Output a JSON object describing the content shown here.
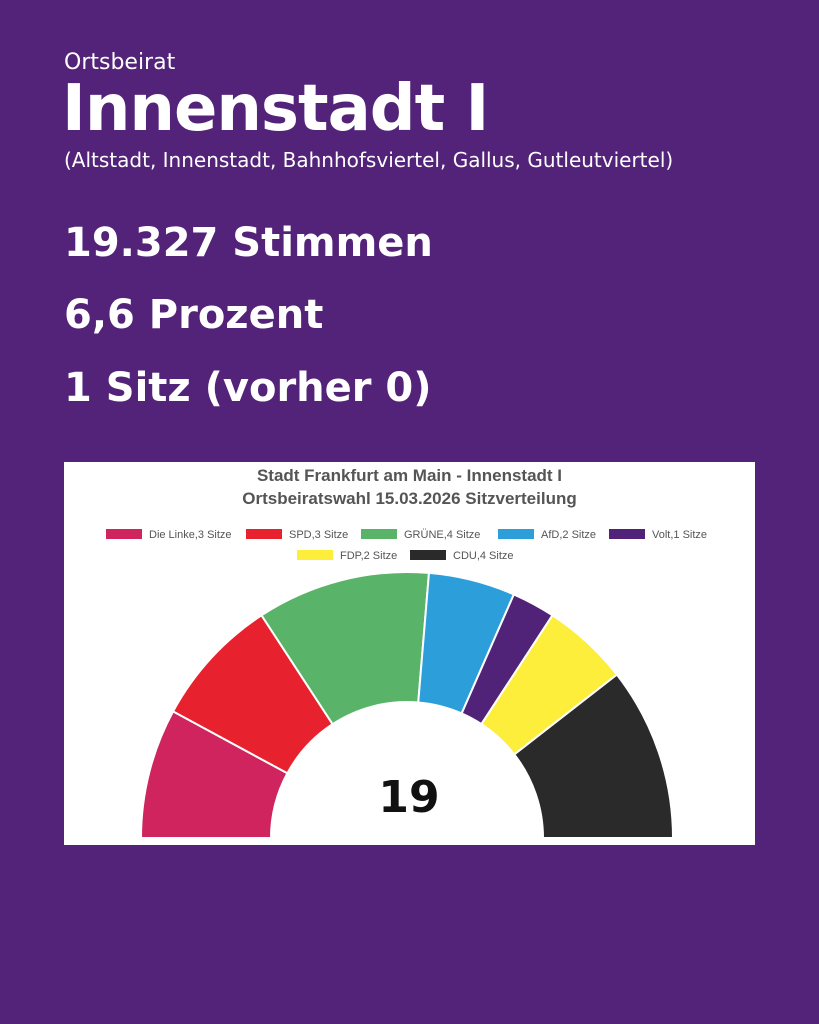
{
  "header": {
    "label": "Ortsbeirat",
    "district": "Innenstadt I",
    "areas": "(Altstadt, Innenstadt, Bahnhofsviertel, Gallus, Gutleutviertel)"
  },
  "stats": {
    "votes": "19.327 Stimmen",
    "percent": "6,6 Prozent",
    "seats": "1 Sitz (vorher 0)"
  },
  "chart_data": {
    "type": "pie",
    "variant": "half-donut",
    "title": [
      "Stadt Frankfurt am Main - Innenstadt I",
      "Ortsbeiratswahl 15.03.2026 Sitzverteilung"
    ],
    "legend_placement": "top",
    "total_label": "19",
    "series": [
      {
        "name": "Die Linke",
        "legend": "Die Linke,3 Sitze",
        "value": 3,
        "color": "#D0245E"
      },
      {
        "name": "SPD",
        "legend": "SPD,3 Sitze",
        "value": 3,
        "color": "#E8212E"
      },
      {
        "name": "GRÜNE",
        "legend": "GRÜNE,4 Sitze",
        "value": 4,
        "color": "#59B368"
      },
      {
        "name": "AfD",
        "legend": "AfD,2 Sitze",
        "value": 2,
        "color": "#2C9FDB"
      },
      {
        "name": "Volt",
        "legend": "Volt,1 Sitze",
        "value": 1,
        "color": "#502379"
      },
      {
        "name": "FDP",
        "legend": "FDP,2 Sitze",
        "value": 2,
        "color": "#FCEE3A"
      },
      {
        "name": "CDU",
        "legend": "CDU,4 Sitze",
        "value": 4,
        "color": "#2B2A2A"
      }
    ]
  }
}
